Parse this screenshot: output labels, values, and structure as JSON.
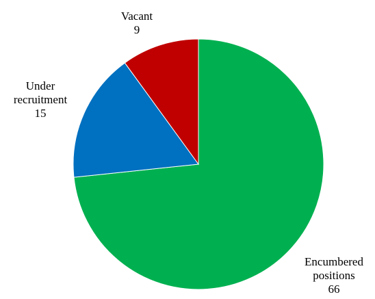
{
  "chart_data": {
    "type": "pie",
    "slices": [
      {
        "label_lines": [
          "Encumbered",
          "positions"
        ],
        "value": 66,
        "color": "#00b050"
      },
      {
        "label_lines": [
          "Under",
          "recruitment"
        ],
        "value": 15,
        "color": "#0070c0"
      },
      {
        "label_lines": [
          "Vacant"
        ],
        "value": 9,
        "color": "#c00000"
      }
    ],
    "value_labels": [
      "66",
      "15",
      "9"
    ],
    "start_angle": "12 o'clock",
    "direction": "clockwise",
    "title": "",
    "legend": "none"
  }
}
